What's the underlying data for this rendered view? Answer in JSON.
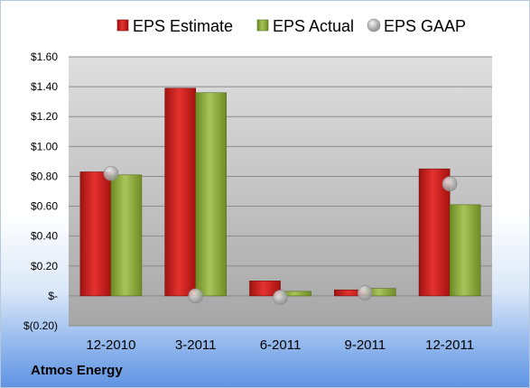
{
  "company": "Atmos Energy",
  "chart_data": {
    "type": "bar",
    "categories": [
      "12-2010",
      "3-2011",
      "6-2011",
      "9-2011",
      "12-2011"
    ],
    "series": [
      {
        "name": "EPS Estimate",
        "kind": "bar",
        "color": "#c0201e",
        "values": [
          0.83,
          1.39,
          0.1,
          0.04,
          0.85
        ]
      },
      {
        "name": "EPS Actual",
        "kind": "bar",
        "color": "#8aa83a",
        "values": [
          0.81,
          1.36,
          0.03,
          0.05,
          0.61
        ]
      },
      {
        "name": "EPS GAAP",
        "kind": "marker",
        "color": "#a8a8a8",
        "values": [
          0.82,
          0.0,
          -0.01,
          0.02,
          0.75
        ]
      }
    ],
    "yticks": [
      "$1.60",
      "$1.40",
      "$1.20",
      "$1.00",
      "$0.80",
      "$0.60",
      "$0.40",
      "$0.20",
      "$-",
      "$(0.20)"
    ],
    "ytick_values": [
      1.6,
      1.4,
      1.2,
      1.0,
      0.8,
      0.6,
      0.4,
      0.2,
      0.0,
      -0.2
    ],
    "ylim": [
      -0.2,
      1.6
    ],
    "legend_position": "top",
    "grid": true
  }
}
